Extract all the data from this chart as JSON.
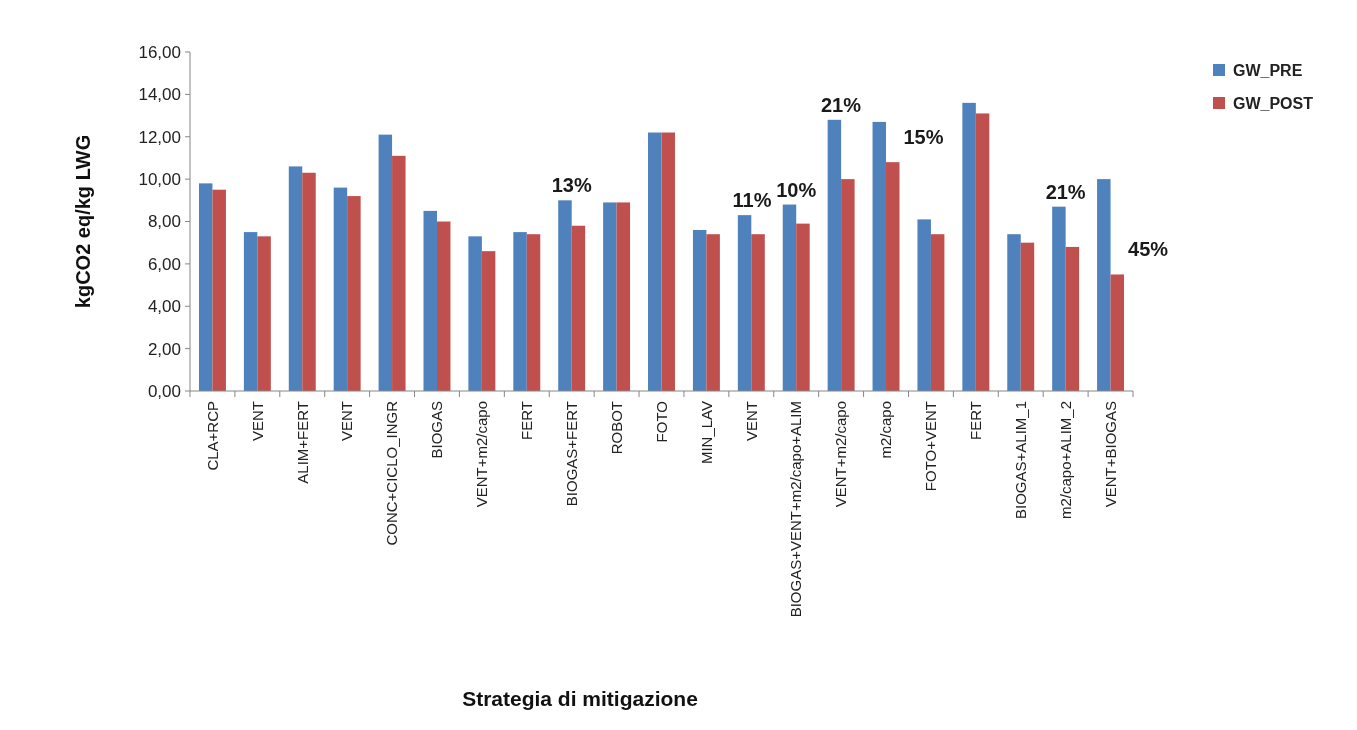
{
  "chart_data": {
    "type": "bar",
    "xlabel": "Strategia di mitigazione",
    "ylabel": "kgCO2 eq/kg LWG",
    "categories": [
      "CLA+RCP",
      "VENT",
      "ALIM+FERT",
      "VENT",
      "CONC+CICLO_INGR",
      "BIOGAS",
      "VENT+m2/capo",
      "FERT",
      "BIOGAS+FERT",
      "ROBOT",
      "FOTO",
      "MIN_LAV",
      "VENT",
      "BIOGAS+VENT+m2/capo+ALIM",
      "VENT+m2/capo",
      "m2/capo",
      "FOTO+VENT",
      "FERT",
      "BIOGAS+ALIM_1",
      "m2/capo+ALIM_2",
      "VENT+BIOGAS"
    ],
    "series": [
      {
        "name": "GW_PRE",
        "color": "#4f81bd",
        "values": [
          9.8,
          7.5,
          10.6,
          9.6,
          12.1,
          8.5,
          7.3,
          7.5,
          9.0,
          8.9,
          12.2,
          7.6,
          8.3,
          8.8,
          12.8,
          12.7,
          8.1,
          13.6,
          7.4,
          8.7,
          10.0
        ]
      },
      {
        "name": "GW_POST",
        "color": "#c0504d",
        "values": [
          9.5,
          7.3,
          10.3,
          9.2,
          11.1,
          8.0,
          6.6,
          7.4,
          7.8,
          8.9,
          12.2,
          7.4,
          7.4,
          7.9,
          10.0,
          10.8,
          7.4,
          13.1,
          7.0,
          6.8,
          5.5
        ]
      }
    ],
    "ylim": [
      0,
      16
    ],
    "yticks": [
      {
        "value": 0,
        "label": "0,00"
      },
      {
        "value": 2,
        "label": "2,00"
      },
      {
        "value": 4,
        "label": "4,00"
      },
      {
        "value": 6,
        "label": "6,00"
      },
      {
        "value": 8,
        "label": "8,00"
      },
      {
        "value": 10,
        "label": "10,00"
      },
      {
        "value": 12,
        "label": "12,00"
      },
      {
        "value": 14,
        "label": "14,00"
      },
      {
        "value": 16,
        "label": "16,00"
      }
    ],
    "annotations": [
      {
        "text": "13%",
        "x": "BIOGAS+FERT",
        "y": 9.0
      },
      "11%",
      {
        "text": "10%",
        "x": "BIOGAS+VENT+m2/capo+ALIM",
        "y": 8.8
      },
      "21%",
      {
        "text": "15%",
        "x": "m2/capo",
        "y": 10.8
      },
      {
        "text": "21%",
        "x": "m2/capo+ALIM_2",
        "y": 8.7
      },
      {
        "text": "45%",
        "x": "VENT+BIOGAS",
        "y": 5.5
      }
    ],
    "legend": "top right",
    "grid": false
  }
}
